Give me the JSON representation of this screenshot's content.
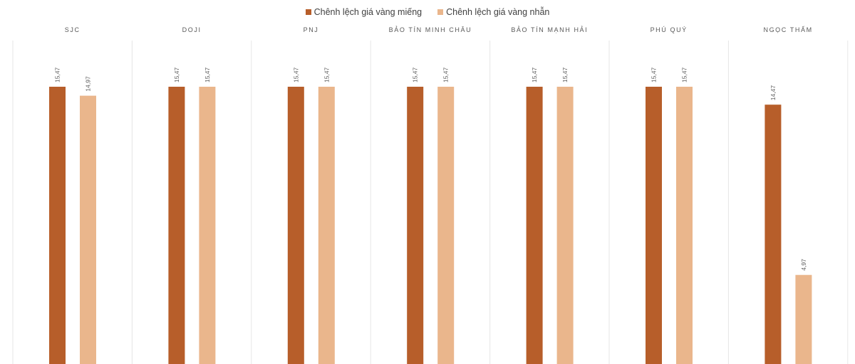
{
  "legend": {
    "series_1": "Chênh lệch giá vàng miếng",
    "series_2": "Chênh lệch giá vàng nhẫn"
  },
  "colors": {
    "series_1": "#B75E2A",
    "series_2": "#EAB68C",
    "divider": "#E6E6E6",
    "text": "#595959"
  },
  "chart_data": {
    "type": "bar",
    "categories": [
      "SJC",
      "DOJI",
      "PNJ",
      "BẢO TÍN MINH CHÂU",
      "BẢO TÍN MẠNH HẢI",
      "PHÚ QUÝ",
      "NGỌC THẨM"
    ],
    "series": [
      {
        "name": "Chênh lệch giá vàng miếng",
        "values": [
          15.47,
          15.47,
          15.47,
          15.47,
          15.47,
          15.47,
          14.47
        ],
        "labels": [
          "15,47",
          "15,47",
          "15,47",
          "15,47",
          "15,47",
          "15,47",
          "14,47"
        ]
      },
      {
        "name": "Chênh lệch giá vàng nhẫn",
        "values": [
          14.97,
          15.47,
          15.47,
          15.47,
          15.47,
          15.47,
          4.97
        ],
        "labels": [
          "14,97",
          "15,47",
          "15,47",
          "15,47",
          "15,47",
          "15,47",
          "4,97"
        ]
      }
    ],
    "title": "",
    "xlabel": "",
    "ylabel": "",
    "legend_position": "top-center",
    "grid": false
  }
}
